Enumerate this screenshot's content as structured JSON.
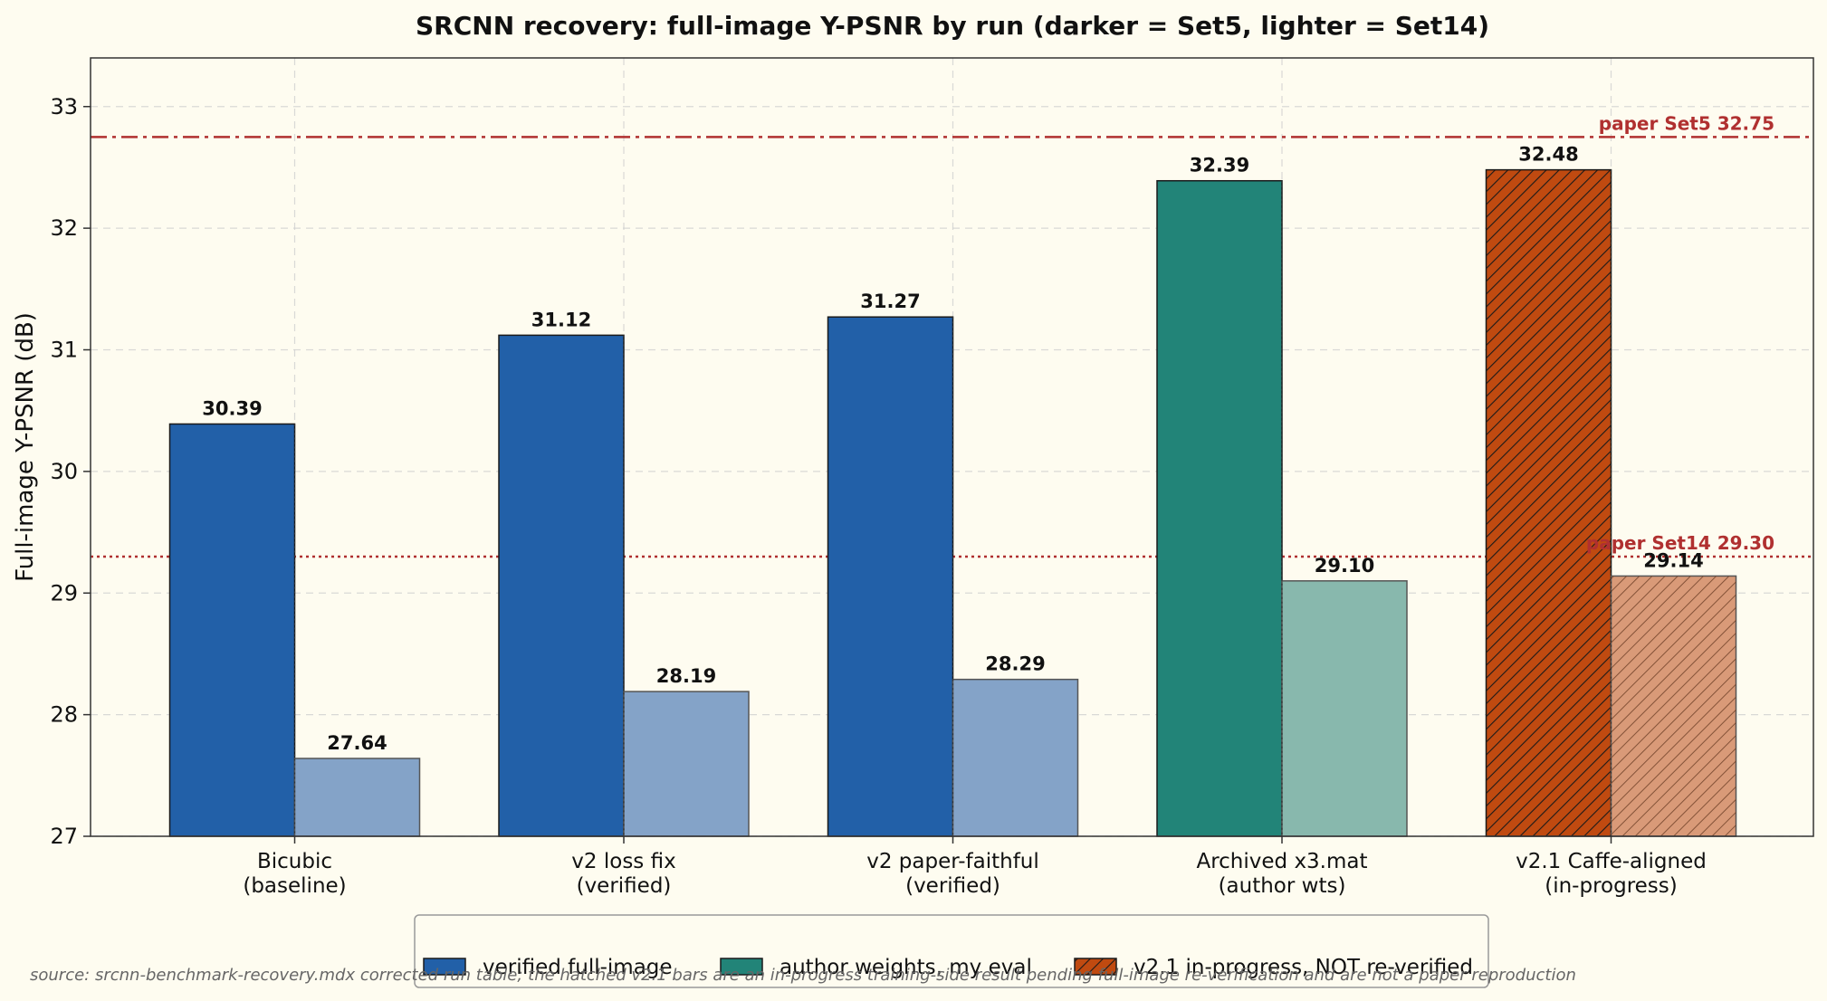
{
  "chart_data": {
    "type": "bar",
    "title": "SRCNN recovery: full-image Y-PSNR by run (darker = Set5, lighter = Set14)",
    "xlabel": "",
    "ylabel": "Full-image Y-PSNR (dB)",
    "ylim": [
      27,
      33.4
    ],
    "yticks": [
      27,
      28,
      29,
      30,
      31,
      32,
      33
    ],
    "grid": true,
    "categories": [
      [
        "Bicubic",
        "(baseline)"
      ],
      [
        "v2 loss fix",
        "(verified)"
      ],
      [
        "v2 paper-faithful",
        "(verified)"
      ],
      [
        "Archived x3.mat",
        "(author wts)"
      ],
      [
        "v2.1 Caffe-aligned",
        "(in-progress)"
      ]
    ],
    "series": [
      {
        "name": "Set5",
        "values": [
          30.39,
          31.12,
          31.27,
          32.39,
          32.48
        ]
      },
      {
        "name": "Set14",
        "values": [
          27.64,
          28.19,
          28.29,
          29.1,
          29.14
        ]
      }
    ],
    "value_labels": [
      [
        "30.39",
        "31.12",
        "31.27",
        "32.39",
        "32.48"
      ],
      [
        "27.64",
        "28.19",
        "28.29",
        "29.10",
        "29.14"
      ]
    ],
    "bar_groups": [
      "verified",
      "verified",
      "verified",
      "author",
      "inprogress"
    ],
    "colors": {
      "verified": {
        "dark": "#2260a8",
        "light": "#84a3c8"
      },
      "author": {
        "dark": "#228478",
        "light": "#88b8ad"
      },
      "inprogress": {
        "dark": "#c04a10",
        "light": "#d99a78"
      },
      "ref_line": "#b03030",
      "background": "#fefcf0"
    },
    "reference_lines": [
      {
        "value": 32.75,
        "label": "paper Set5 32.75",
        "style": "dashdot"
      },
      {
        "value": 29.3,
        "label": "paper Set14 29.30",
        "style": "dotted"
      }
    ],
    "legend": {
      "placement": "bottom-center",
      "entries": [
        {
          "label": "verified full-image",
          "group": "verified",
          "hatch": false
        },
        {
          "label": "author weights, my eval",
          "group": "author",
          "hatch": false
        },
        {
          "label": "v2.1 in-progress, NOT re-verified",
          "group": "inprogress",
          "hatch": true
        }
      ]
    },
    "source_note": "source: srcnn-benchmark-recovery.mdx corrected run table; the hatched v2.1 bars are an in-progress training-side result pending full-image re-verification and are not a paper reproduction"
  }
}
